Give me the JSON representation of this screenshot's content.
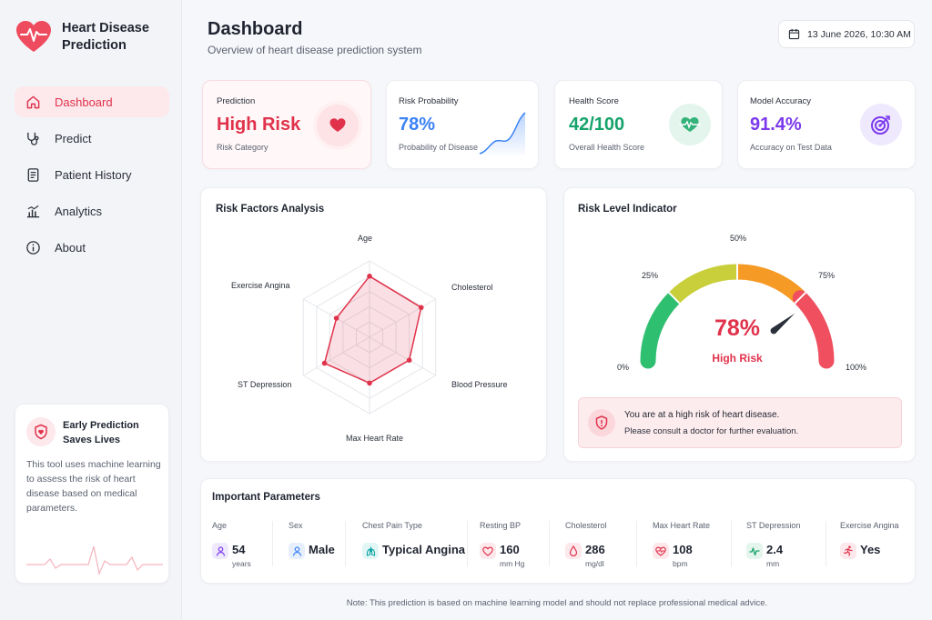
{
  "app": {
    "title_line1": "Heart Disease",
    "title_line2": "Prediction"
  },
  "nav": [
    {
      "label": "Dashboard",
      "icon": "home-icon",
      "active": true
    },
    {
      "label": "Predict",
      "icon": "stethoscope-icon",
      "active": false
    },
    {
      "label": "Patient History",
      "icon": "document-icon",
      "active": false
    },
    {
      "label": "Analytics",
      "icon": "bar-chart-icon",
      "active": false
    },
    {
      "label": "About",
      "icon": "info-icon",
      "active": false
    }
  ],
  "promo": {
    "title": "Early Prediction Saves Lives",
    "text": "This tool uses machine learning to assess the risk of heart disease based on medical parameters."
  },
  "header": {
    "title": "Dashboard",
    "subtitle": "Overview of heart disease prediction system",
    "date": "13 June 2026, 10:30 AM"
  },
  "stats": {
    "prediction": {
      "label": "Prediction",
      "value": "High Risk",
      "sub": "Risk Category",
      "color": "#e0324b"
    },
    "probability": {
      "label": "Risk Probability",
      "value": "78%",
      "sub": "Probability of Disease",
      "color": "#3b82f6"
    },
    "health": {
      "label": "Health Score",
      "value": "42/100",
      "sub": "Overall Health Score",
      "color": "#16a36b"
    },
    "accuracy": {
      "label": "Model Accuracy",
      "value": "91.4%",
      "sub": "Accuracy on Test Data",
      "color": "#7c3aed"
    }
  },
  "risk_factors": {
    "title": "Risk Factors Analysis",
    "chart_data": {
      "type": "radar",
      "axes": [
        "Age",
        "Cholesterol",
        "Blood Pressure",
        "Max Heart Rate",
        "ST Depression",
        "Exercise Angina"
      ],
      "values": [
        0.8,
        0.78,
        0.6,
        0.6,
        0.68,
        0.5
      ],
      "range": [
        0,
        1
      ],
      "color": "#e0324b"
    }
  },
  "risk_level": {
    "title": "Risk Level Indicator",
    "value": "78%",
    "value_fraction": 0.78,
    "label": "High Risk",
    "ticks": [
      "0%",
      "25%",
      "50%",
      "75%",
      "100%"
    ],
    "alert_title": "You are at a high risk of heart disease.",
    "alert_text": "Please consult a doctor for further evaluation."
  },
  "parameters": {
    "title": "Important Parameters",
    "items": [
      {
        "label": "Age",
        "value": "54",
        "unit": "years",
        "icon": "person-icon",
        "color": "#7c3aed",
        "bg": "#efe9fd"
      },
      {
        "label": "Sex",
        "value": "Male",
        "unit": "",
        "icon": "user-icon",
        "color": "#3b82f6",
        "bg": "#e7effd"
      },
      {
        "label": "Chest Pain Type",
        "value": "Typical Angina",
        "unit": "",
        "icon": "lungs-icon",
        "color": "#0ea5a4",
        "bg": "#e2f6f5"
      },
      {
        "label": "Resting BP",
        "value": "160",
        "unit": "mm Hg",
        "icon": "heart-outline-icon",
        "color": "#e0324b",
        "bg": "#fde8ec"
      },
      {
        "label": "Cholesterol",
        "value": "286",
        "unit": "mg/dl",
        "icon": "drop-icon",
        "color": "#e0324b",
        "bg": "#fde8ec"
      },
      {
        "label": "Max Heart Rate",
        "value": "108",
        "unit": "bpm",
        "icon": "heart-pulse-icon",
        "color": "#e0324b",
        "bg": "#fde8ec"
      },
      {
        "label": "ST Depression",
        "value": "2.4",
        "unit": "mm",
        "icon": "pulse-icon",
        "color": "#16a36b",
        "bg": "#e3f5ec"
      },
      {
        "label": "Exercise Angina",
        "value": "Yes",
        "unit": "",
        "icon": "running-icon",
        "color": "#e0324b",
        "bg": "#fde8ec"
      }
    ]
  },
  "footer": {
    "note": "Note: This prediction is based on machine learning model and should not replace professional medical advice."
  }
}
